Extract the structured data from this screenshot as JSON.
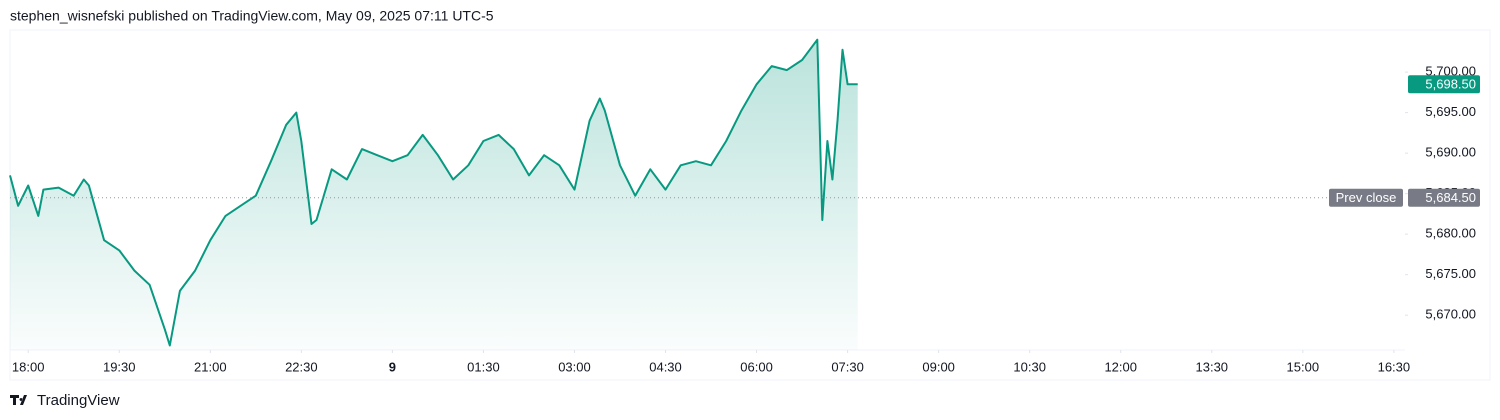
{
  "header": "stephen_wisnefski published on TradingView.com, May 09, 2025 07:11 UTC-5",
  "footer": "TradingView",
  "chart_data": {
    "type": "line",
    "color": "#089981",
    "area": true,
    "x": [
      "17:42",
      "17:50",
      "18:00",
      "18:10",
      "18:15",
      "18:30",
      "18:45",
      "18:55",
      "19:00",
      "19:15",
      "19:30",
      "19:45",
      "20:00",
      "20:15",
      "20:20",
      "20:30",
      "20:45",
      "21:00",
      "21:15",
      "21:30",
      "21:45",
      "22:00",
      "22:15",
      "22:25",
      "22:30",
      "22:40",
      "22:45",
      "23:00",
      "23:15",
      "23:30",
      "23:45",
      "00:00",
      "00:15",
      "00:30",
      "00:45",
      "01:00",
      "01:15",
      "01:30",
      "01:45",
      "02:00",
      "02:15",
      "02:30",
      "02:45",
      "03:00",
      "03:15",
      "03:25",
      "03:30",
      "03:45",
      "04:00",
      "04:15",
      "04:30",
      "04:45",
      "05:00",
      "05:15",
      "05:30",
      "05:45",
      "06:00",
      "06:15",
      "06:30",
      "06:45",
      "07:00",
      "07:05",
      "07:10",
      "07:15",
      "07:20",
      "07:25",
      "07:30",
      "07:40"
    ],
    "values": [
      5687.25,
      5683.5,
      5686,
      5682.25,
      5685.5,
      5685.75,
      5684.75,
      5686.75,
      5686,
      5679.25,
      5678,
      5675.5,
      5673.75,
      5668.25,
      5666.25,
      5673,
      5675.5,
      5679.25,
      5682.25,
      5683.5,
      5684.75,
      5689,
      5693.5,
      5695,
      5691.5,
      5681.25,
      5681.75,
      5688,
      5686.75,
      5690.5,
      5689.75,
      5689,
      5689.75,
      5692.25,
      5689.75,
      5686.75,
      5688.5,
      5691.5,
      5692.25,
      5690.5,
      5687.25,
      5689.75,
      5688.5,
      5685.5,
      5694,
      5696.75,
      5695.25,
      5688.5,
      5684.75,
      5688,
      5685.5,
      5688.5,
      5689,
      5688.5,
      5691.5,
      5695.25,
      5698.5,
      5700.75,
      5700.25,
      5701.5,
      5704,
      5681.75,
      5691.5,
      5686.75,
      5694,
      5702.75,
      5698.5,
      5698.5
    ],
    "xlim": [
      "17:42",
      "16:41"
    ],
    "xticks": [
      "18:00",
      "19:30",
      "21:00",
      "22:30",
      {
        "value": "00:00",
        "label": "9"
      },
      "01:30",
      "03:00",
      "04:30",
      "06:00",
      "07:30",
      "09:00",
      "10:30",
      "12:00",
      "13:30",
      "15:00",
      "16:30"
    ],
    "ylim": [
      5665.7,
      5705.2
    ],
    "yticks": [
      {
        "value": 5670,
        "label": "5,670.00"
      },
      {
        "value": 5675,
        "label": "5,675.00"
      },
      {
        "value": 5680,
        "label": "5,680.00"
      },
      {
        "value": 5685,
        "label": "5,685.00"
      },
      {
        "value": 5690,
        "label": "5,690.00"
      },
      {
        "value": 5695,
        "label": "5,695.00"
      },
      {
        "value": 5700,
        "label": "5,700.00"
      }
    ],
    "prev_close": {
      "name": "Prev close",
      "value": 5684.5,
      "label": "5,684.50"
    },
    "last_price": {
      "value": 5698.5,
      "label": "5,698.50"
    }
  }
}
